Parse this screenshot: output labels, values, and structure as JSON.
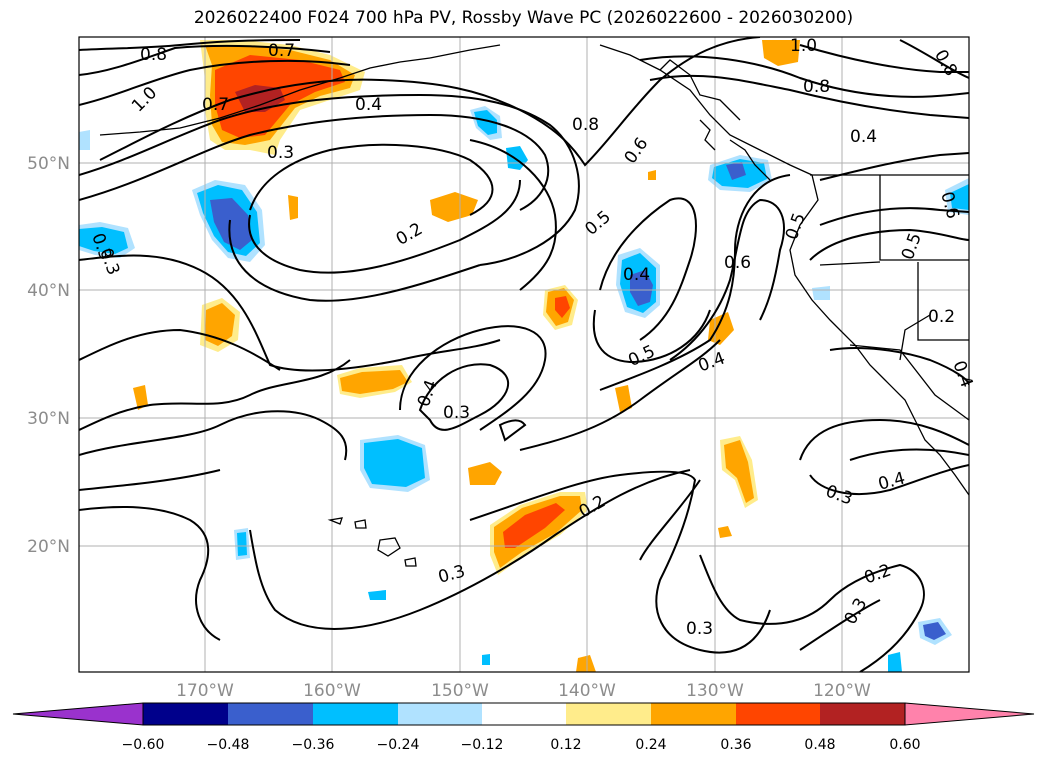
{
  "title": "2026022400 F024 700 hPa PV, Rossby Wave PC (2026022600 - 2026030200)",
  "lat_labels": [
    "50°N",
    "40°N",
    "30°N",
    "20°N"
  ],
  "lon_labels": [
    "170°W",
    "160°W",
    "150°W",
    "140°W",
    "130°W",
    "120°W"
  ],
  "contour_labels": [
    "0.8",
    "0.7",
    "1.0",
    "0.7",
    "0.4",
    "0.3",
    "0.2",
    "0.8",
    "0.6",
    "0.5",
    "0.4",
    "0.6",
    "0.5",
    "0.4",
    "0.4",
    "0.3",
    "0.2",
    "0.3",
    "0.3",
    "0.2",
    "0.3",
    "0.4",
    "0.3",
    "0.5",
    "0.2",
    "0.4",
    "0.5",
    "0.6",
    "0.8",
    "1.0",
    "0.8",
    "0.4",
    "0.3",
    "0.3"
  ],
  "colorbar": {
    "ticks": [
      "−0.60",
      "−0.48",
      "−0.36",
      "−0.24",
      "−0.12",
      "0.12",
      "0.24",
      "0.36",
      "0.48",
      "0.60"
    ],
    "colors": [
      "#9a32cd",
      "#00008b",
      "#3a5fcd",
      "#00bfff",
      "#b0e2ff",
      "#ffffff",
      "#ffec8b",
      "#ffa500",
      "#ff4500",
      "#b22222",
      "#ff82ab"
    ]
  },
  "colors": {
    "pos_low": "#ffec8b",
    "pos_mid": "#ffa500",
    "pos_high": "#ff4500",
    "pos_max": "#b22222",
    "neg_low": "#b0e2ff",
    "neg_mid": "#00bfff",
    "neg_high": "#3a5fcd",
    "neg_max": "#00008b"
  }
}
